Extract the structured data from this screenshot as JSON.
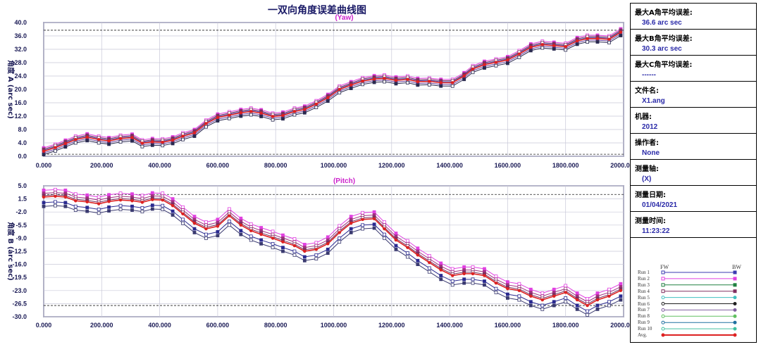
{
  "title": "一双向角度误差曲线图",
  "chart_data": [
    {
      "type": "line",
      "title": "(Yaw)",
      "ylabel": "角度 A (arc sec)",
      "ylim": [
        0,
        40
      ],
      "xlim": [
        0,
        2000
      ],
      "yticks": [
        "40.0",
        "36.0",
        "32.0",
        "28.0",
        "24.0",
        "20.0",
        "16.0",
        "12.0",
        "8.0",
        "4.0",
        "0.0"
      ],
      "xticks": [
        "0.000",
        "200.000",
        "400.000",
        "600.000",
        "800.000",
        "1000.000",
        "1200.000",
        "1400.000",
        "1600.000",
        "1800.000",
        "2000.000"
      ],
      "limit_lines": [
        37.7,
        0.6
      ],
      "x": [
        0,
        40,
        75,
        110,
        150,
        190,
        225,
        265,
        305,
        340,
        375,
        410,
        445,
        480,
        520,
        560,
        600,
        640,
        680,
        715,
        750,
        790,
        825,
        865,
        900,
        940,
        980,
        1020,
        1060,
        1100,
        1140,
        1175,
        1215,
        1255,
        1290,
        1330,
        1370,
        1410,
        1450,
        1480,
        1520,
        1560,
        1600,
        1640,
        1680,
        1720,
        1760,
        1800,
        1840,
        1875,
        1910,
        1950,
        1990
      ],
      "avg": [
        1.5,
        2.6,
        3.8,
        5.0,
        5.7,
        5.0,
        4.6,
        5.3,
        5.6,
        3.9,
        4.3,
        4.2,
        4.8,
        6.0,
        7.0,
        9.8,
        11.6,
        12.3,
        13.0,
        13.4,
        12.9,
        11.9,
        12.2,
        13.4,
        14.0,
        15.6,
        17.5,
        20.0,
        21.3,
        22.5,
        23.1,
        23.3,
        22.7,
        23.0,
        22.3,
        22.4,
        22.0,
        22.0,
        24.0,
        26.1,
        27.4,
        28.1,
        28.8,
        30.6,
        32.6,
        33.4,
        33.1,
        32.8,
        34.5,
        35.2,
        35.2,
        35.0,
        37.1
      ],
      "series": [
        {
          "name": "Run 1",
          "color": "#4a4ab0",
          "offset": 0.3
        },
        {
          "name": "Run 2",
          "color": "#e040e0",
          "offset": 1.0
        },
        {
          "name": "Run 3",
          "color": "#6a3fa0",
          "offset": -0.5
        },
        {
          "name": "Run 4",
          "color": "#7a3060",
          "offset": 0.6
        },
        {
          "name": "Run 6",
          "color": "#2a2a50",
          "offset": -1.0
        },
        {
          "name": "Avg.",
          "color": "#dd2222",
          "offset": 0
        }
      ]
    },
    {
      "type": "line",
      "title": "(Pitch)",
      "ylabel": "角度 B (arc sec)",
      "ylim": [
        -30,
        5
      ],
      "xlim": [
        0,
        2000
      ],
      "yticks": [
        "5.0",
        "1.5",
        "-2.0",
        "-5.5",
        "-9.0",
        "-12.5",
        "-16.0",
        "-19.5",
        "-23.0",
        "-26.5",
        "-30.0"
      ],
      "xticks": [
        "0.000",
        "200.000",
        "400.000",
        "600.000",
        "800.000",
        "1000.000",
        "1200.000",
        "1400.000",
        "1600.000",
        "1800.000",
        "2000.000"
      ],
      "limit_lines": [
        2.7,
        -27.0
      ],
      "x": [
        0,
        40,
        75,
        110,
        150,
        190,
        225,
        265,
        305,
        340,
        375,
        410,
        445,
        480,
        520,
        560,
        600,
        640,
        680,
        715,
        750,
        790,
        825,
        865,
        900,
        940,
        980,
        1020,
        1060,
        1100,
        1140,
        1175,
        1215,
        1255,
        1290,
        1330,
        1370,
        1410,
        1450,
        1480,
        1520,
        1560,
        1600,
        1640,
        1680,
        1720,
        1760,
        1800,
        1840,
        1875,
        1910,
        1950,
        1990
      ],
      "avg": [
        2.0,
        2.2,
        2.0,
        1.0,
        0.7,
        0.2,
        0.8,
        1.2,
        1.0,
        0.6,
        1.3,
        1.2,
        -0.3,
        -2.5,
        -5.0,
        -6.5,
        -5.8,
        -3.0,
        -5.5,
        -7.0,
        -8.0,
        -9.0,
        -10.0,
        -11.0,
        -12.5,
        -12.0,
        -10.5,
        -7.5,
        -5.0,
        -4.0,
        -3.8,
        -6.5,
        -9.5,
        -11.5,
        -13.5,
        -15.5,
        -17.5,
        -19.0,
        -18.5,
        -18.5,
        -19.0,
        -21.0,
        -22.5,
        -23.0,
        -24.5,
        -25.5,
        -24.5,
        -23.5,
        -25.5,
        -27.0,
        -25.5,
        -24.5,
        -23.0
      ],
      "series": [
        {
          "name": "Run 1",
          "color": "#2a2a90",
          "offset": -1.5
        },
        {
          "name": "Run 2",
          "color": "#e040e0",
          "offset": 1.8
        },
        {
          "name": "Run 3",
          "color": "#a03080",
          "offset": 1.0
        },
        {
          "name": "Run 4",
          "color": "#7a3060",
          "offset": 0.4
        },
        {
          "name": "Run 6",
          "color": "#3a3a70",
          "offset": -2.5
        },
        {
          "name": "Avg.",
          "color": "#dd2222",
          "offset": 0
        }
      ]
    }
  ],
  "info": [
    {
      "label": "最大A角平均误差:",
      "value": "36.6 arc sec"
    },
    {
      "label": "最大B角平均误差:",
      "value": "30.3 arc sec"
    },
    {
      "label": "最大C角平均误差:",
      "value": "------"
    },
    {
      "label": "文件名:",
      "value": "X1.ang"
    },
    {
      "label": "机器:",
      "value": "2012"
    },
    {
      "label": "操作者:",
      "value": "None"
    },
    {
      "label": "测量轴:",
      "value": "(X)"
    },
    {
      "label": "测量日期:",
      "value": "01/04/2021"
    },
    {
      "label": "测量时间:",
      "value": "11:23:22"
    }
  ],
  "legend": {
    "fw_label": "FW",
    "bw_label": "BW",
    "runs": [
      {
        "name": "Run 1",
        "color": "#3a3ab0",
        "marker": "square"
      },
      {
        "name": "Run 2",
        "color": "#e040e0",
        "marker": "square"
      },
      {
        "name": "Run 3",
        "color": "#208040",
        "marker": "square"
      },
      {
        "name": "Run 4",
        "color": "#803060",
        "marker": "square"
      },
      {
        "name": "Run 5",
        "color": "#40c0c0",
        "marker": "diamond"
      },
      {
        "name": "Run 6",
        "color": "#202020",
        "marker": "circle"
      },
      {
        "name": "Run 7",
        "color": "#8060a0",
        "marker": "circle"
      },
      {
        "name": "Run 8",
        "color": "#60c060",
        "marker": "circle"
      },
      {
        "name": "Run 9",
        "color": "#2070a0",
        "marker": "circle"
      },
      {
        "name": "Run 10",
        "color": "#40c0a0",
        "marker": "circle"
      },
      {
        "name": "Avg.",
        "color": "#dd2222",
        "marker": "circle"
      }
    ]
  }
}
